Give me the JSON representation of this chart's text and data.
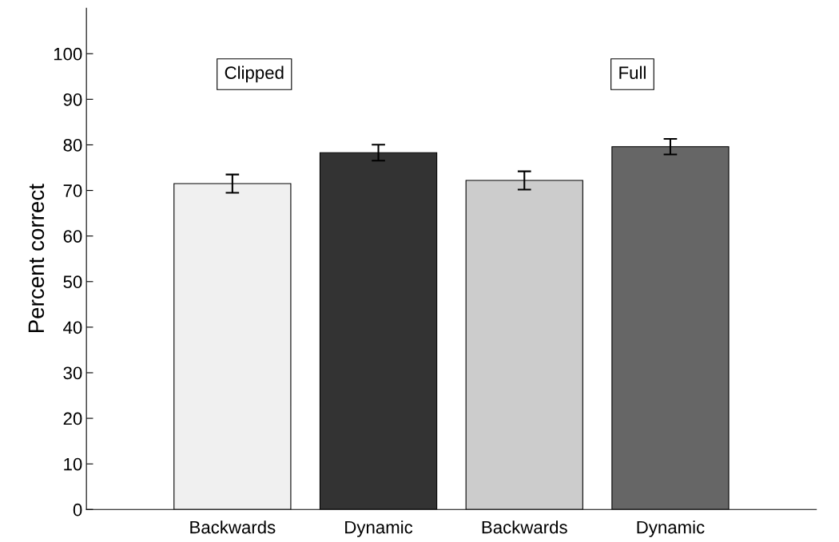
{
  "chart_data": {
    "type": "bar",
    "ylabel": "Percent correct",
    "categories": [
      "Backwards",
      "Dynamic",
      "Backwards",
      "Dynamic"
    ],
    "values": [
      71.5,
      78.3,
      72.2,
      79.6
    ],
    "colors": [
      "#f0f0f0",
      "#333333",
      "#cccccc",
      "#666666"
    ],
    "errors": [
      2,
      1.75,
      2,
      1.7
    ],
    "ylim": [
      0,
      110
    ],
    "yticks": [
      0,
      10,
      20,
      30,
      40,
      50,
      60,
      70,
      80,
      90,
      100
    ],
    "annotations": [
      "Clipped",
      "Full"
    ],
    "grid": false
  }
}
